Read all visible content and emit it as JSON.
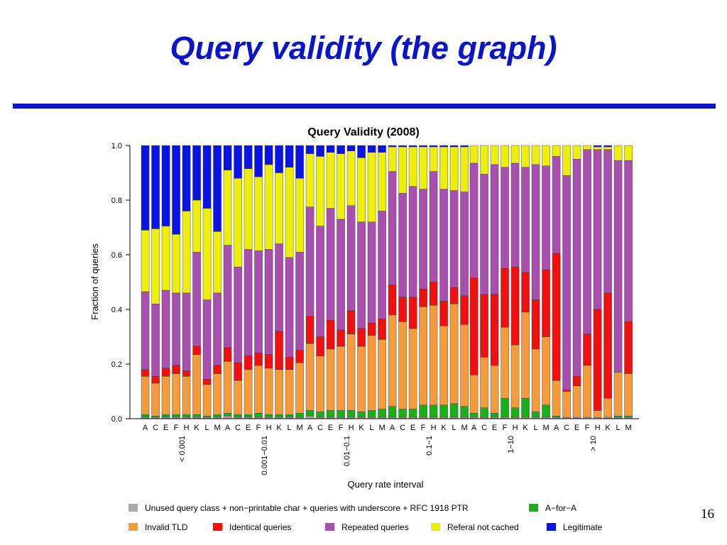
{
  "slide": {
    "title": "Query validity (the graph)",
    "page_number": "16"
  },
  "chart_data": {
    "type": "bar",
    "stacked": true,
    "normalized": true,
    "title": "Query Validity (2008)",
    "xlabel": "Query rate interval",
    "ylabel": "Fraction of queries",
    "ylim": [
      0,
      1
    ],
    "yticks": [
      "0.0",
      "0.2",
      "0.4",
      "0.6",
      "0.8",
      "1.0"
    ],
    "grid": false,
    "legend_position": "bottom",
    "servers": [
      "A",
      "C",
      "E",
      "F",
      "H",
      "K",
      "L",
      "M"
    ],
    "groups": [
      "< 0.001",
      "0.001−0.01",
      "0.01−0.1",
      "0.1−1",
      "1−10",
      "> 10"
    ],
    "series": [
      {
        "name": "Unused query class + non−printable char + queries with underscore + RFC 1918 PTR",
        "color": "#aaaaaa"
      },
      {
        "name": "A−for−A",
        "color": "#1aaf1a"
      },
      {
        "name": "Invalid TLD",
        "color": "#f59b3c"
      },
      {
        "name": "Identical queries",
        "color": "#f01010"
      },
      {
        "name": "Repeated queries",
        "color": "#a84fb0"
      },
      {
        "name": "Referal not cached",
        "color": "#eeee0c"
      },
      {
        "name": "Legitimate",
        "color": "#0a14e6"
      }
    ],
    "legend_order": [
      0,
      1,
      2,
      3,
      4,
      5,
      6
    ],
    "cumulative_note": "Each bar lists cumulative upper bounds for series in stacking order: unused, A-for-A, invalid TLD, identical, repeated, referal not cached, legitimate.",
    "bars": [
      [
        [
          0.005,
          0.015,
          0.155,
          0.18,
          0.465,
          0.69,
          1.0
        ],
        [
          0.005,
          0.01,
          0.13,
          0.155,
          0.42,
          0.695,
          1.0
        ],
        [
          0.005,
          0.015,
          0.155,
          0.185,
          0.47,
          0.705,
          1.0
        ],
        [
          0.005,
          0.015,
          0.165,
          0.195,
          0.46,
          0.675,
          1.0
        ],
        [
          0.005,
          0.015,
          0.155,
          0.175,
          0.46,
          0.76,
          1.0
        ],
        [
          0.005,
          0.015,
          0.235,
          0.265,
          0.61,
          0.8,
          1.0
        ],
        [
          0.005,
          0.01,
          0.125,
          0.145,
          0.435,
          0.77,
          1.0
        ],
        [
          0.005,
          0.015,
          0.165,
          0.195,
          0.46,
          0.685,
          1.0
        ]
      ],
      [
        [
          0.01,
          0.02,
          0.21,
          0.26,
          0.635,
          0.91,
          1.0
        ],
        [
          0.005,
          0.015,
          0.14,
          0.205,
          0.555,
          0.88,
          1.0
        ],
        [
          0.005,
          0.015,
          0.18,
          0.23,
          0.62,
          0.915,
          1.0
        ],
        [
          0.005,
          0.02,
          0.195,
          0.24,
          0.615,
          0.885,
          1.0
        ],
        [
          0.005,
          0.015,
          0.185,
          0.235,
          0.62,
          0.93,
          1.0
        ],
        [
          0.005,
          0.015,
          0.18,
          0.32,
          0.64,
          0.9,
          1.0
        ],
        [
          0.005,
          0.015,
          0.18,
          0.225,
          0.59,
          0.92,
          1.0
        ],
        [
          0.005,
          0.02,
          0.205,
          0.25,
          0.61,
          0.88,
          1.0
        ]
      ],
      [
        [
          0.01,
          0.03,
          0.275,
          0.375,
          0.775,
          0.97,
          1.0
        ],
        [
          0.005,
          0.025,
          0.23,
          0.3,
          0.705,
          0.96,
          1.0
        ],
        [
          0.005,
          0.03,
          0.255,
          0.36,
          0.77,
          0.975,
          1.0
        ],
        [
          0.005,
          0.03,
          0.265,
          0.325,
          0.73,
          0.97,
          1.0
        ],
        [
          0.005,
          0.03,
          0.31,
          0.395,
          0.78,
          0.98,
          1.0
        ],
        [
          0.005,
          0.025,
          0.265,
          0.33,
          0.72,
          0.955,
          1.0
        ],
        [
          0.005,
          0.03,
          0.305,
          0.35,
          0.72,
          0.975,
          1.0
        ],
        [
          0.005,
          0.035,
          0.29,
          0.365,
          0.76,
          0.975,
          1.0
        ]
      ],
      [
        [
          0.005,
          0.045,
          0.38,
          0.49,
          0.905,
          0.995,
          1.0
        ],
        [
          0.005,
          0.035,
          0.355,
          0.445,
          0.825,
          0.995,
          1.0
        ],
        [
          0.005,
          0.035,
          0.33,
          0.445,
          0.85,
          0.995,
          1.0
        ],
        [
          0.005,
          0.05,
          0.41,
          0.475,
          0.84,
          0.995,
          1.0
        ],
        [
          0.005,
          0.05,
          0.415,
          0.5,
          0.905,
          0.995,
          1.0
        ],
        [
          0.005,
          0.05,
          0.34,
          0.43,
          0.84,
          0.995,
          1.0
        ],
        [
          0.005,
          0.055,
          0.42,
          0.48,
          0.835,
          0.995,
          1.0
        ],
        [
          0.005,
          0.045,
          0.345,
          0.45,
          0.83,
          0.995,
          1.0
        ]
      ],
      [
        [
          0.005,
          0.02,
          0.16,
          0.515,
          0.935,
          1.0,
          1.0
        ],
        [
          0.005,
          0.04,
          0.225,
          0.455,
          0.895,
          1.0,
          1.0
        ],
        [
          0.005,
          0.02,
          0.195,
          0.455,
          0.93,
          1.0,
          1.0
        ],
        [
          0.005,
          0.075,
          0.335,
          0.55,
          0.92,
          1.0,
          1.0
        ],
        [
          0.005,
          0.04,
          0.27,
          0.555,
          0.935,
          1.0,
          1.0
        ],
        [
          0.005,
          0.075,
          0.39,
          0.535,
          0.92,
          1.0,
          1.0
        ],
        [
          0.005,
          0.025,
          0.255,
          0.435,
          0.93,
          1.0,
          1.0
        ],
        [
          0.005,
          0.05,
          0.3,
          0.545,
          0.925,
          1.0,
          1.0
        ]
      ],
      [
        [
          0.005,
          0.01,
          0.14,
          0.605,
          0.96,
          1.0,
          1.0
        ],
        [
          0.005,
          0.005,
          0.1,
          0.105,
          0.89,
          1.0,
          1.0
        ],
        [
          0.005,
          0.005,
          0.12,
          0.155,
          0.95,
          1.0,
          1.0
        ],
        [
          0.005,
          0.005,
          0.195,
          0.31,
          0.985,
          1.0,
          1.0
        ],
        [
          0.005,
          0.005,
          0.03,
          0.4,
          0.985,
          0.995,
          1.0
        ],
        [
          0.005,
          0.005,
          0.075,
          0.46,
          0.985,
          0.995,
          1.0
        ],
        [
          0.005,
          0.01,
          0.17,
          0.17,
          0.945,
          1.0,
          1.0
        ],
        [
          0.005,
          0.01,
          0.165,
          0.355,
          0.945,
          1.0,
          1.0
        ]
      ]
    ]
  }
}
